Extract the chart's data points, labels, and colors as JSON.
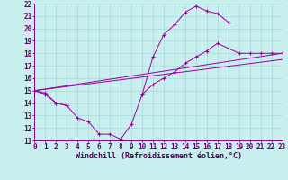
{
  "xlabel": "Windchill (Refroidissement éolien,°C)",
  "xlim": [
    0,
    23
  ],
  "ylim": [
    11,
    22
  ],
  "xticks": [
    0,
    1,
    2,
    3,
    4,
    5,
    6,
    7,
    8,
    9,
    10,
    11,
    12,
    13,
    14,
    15,
    16,
    17,
    18,
    19,
    20,
    21,
    22,
    23
  ],
  "yticks": [
    11,
    12,
    13,
    14,
    15,
    16,
    17,
    18,
    19,
    20,
    21,
    22
  ],
  "bg_color": "#c8eeee",
  "grid_color": "#a8d8d8",
  "line_color": "#990099",
  "curve1_x": [
    0,
    1,
    2,
    3,
    4,
    5,
    6,
    7,
    8,
    9,
    10,
    11,
    12,
    13,
    14,
    15,
    16,
    17,
    18
  ],
  "curve1_y": [
    15.0,
    14.8,
    14.0,
    13.8,
    12.8,
    12.5,
    11.5,
    11.5,
    11.1,
    12.3,
    14.7,
    17.7,
    19.5,
    20.3,
    21.3,
    21.8,
    21.4,
    21.2,
    20.5
  ],
  "curve2_x": [
    0,
    1,
    2,
    3,
    10,
    11,
    12,
    13,
    14,
    15,
    16,
    17,
    19,
    20,
    21,
    22,
    23
  ],
  "curve2_y": [
    15.0,
    14.7,
    14.0,
    13.8,
    14.7,
    15.5,
    16.0,
    16.5,
    17.2,
    17.7,
    18.2,
    18.8,
    18.0,
    18.0,
    18.0,
    18.0,
    18.0
  ],
  "line3_x": [
    0,
    23
  ],
  "line3_y": [
    15.0,
    18.0
  ],
  "line4_x": [
    0,
    23
  ],
  "line4_y": [
    15.0,
    17.5
  ],
  "font_size_label": 6,
  "font_size_tick": 5.5
}
